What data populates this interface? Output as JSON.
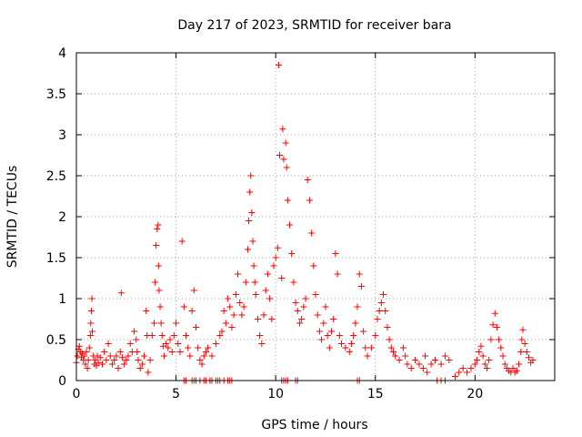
{
  "chart_data": {
    "type": "scatter",
    "title": "Day 217 of 2023, SRMTID for receiver bara",
    "xlabel": "GPS time / hours",
    "ylabel": "SRMTID / TECUs",
    "xlim": [
      0,
      24
    ],
    "ylim": [
      0,
      4
    ],
    "xticks": [
      0,
      5,
      10,
      15,
      20
    ],
    "yticks": [
      0,
      0.5,
      1,
      1.5,
      2,
      2.5,
      3,
      3.5,
      4
    ],
    "xtick_labels": [
      "0",
      "5",
      "10",
      "15",
      "20"
    ],
    "ytick_labels": [
      "0",
      "0.5",
      "1",
      "1.5",
      "2",
      "2.5",
      "3",
      "3.5",
      "4"
    ],
    "grid": true,
    "marker": "+",
    "series": [
      {
        "name": "SRMTID",
        "color": "#ff0000",
        "points": [
          [
            0.0,
            0.22
          ],
          [
            0.05,
            0.3
          ],
          [
            0.1,
            0.38
          ],
          [
            0.15,
            0.42
          ],
          [
            0.2,
            0.35
          ],
          [
            0.25,
            0.28
          ],
          [
            0.3,
            0.33
          ],
          [
            0.35,
            0.25
          ],
          [
            0.4,
            0.3
          ],
          [
            0.45,
            0.2
          ],
          [
            0.5,
            0.35
          ],
          [
            0.55,
            0.15
          ],
          [
            0.6,
            0.25
          ],
          [
            0.65,
            0.4
          ],
          [
            0.7,
            0.55
          ],
          [
            0.72,
            0.7
          ],
          [
            0.75,
            0.85
          ],
          [
            0.78,
            1.0
          ],
          [
            0.8,
            0.6
          ],
          [
            0.85,
            0.3
          ],
          [
            0.9,
            0.2
          ],
          [
            0.95,
            0.25
          ],
          [
            1.0,
            0.18
          ],
          [
            1.05,
            0.3
          ],
          [
            1.1,
            0.22
          ],
          [
            1.2,
            0.28
          ],
          [
            1.3,
            0.2
          ],
          [
            1.4,
            0.35
          ],
          [
            1.5,
            0.25
          ],
          [
            1.6,
            0.45
          ],
          [
            1.7,
            0.3
          ],
          [
            1.8,
            0.2
          ],
          [
            1.9,
            0.25
          ],
          [
            2.0,
            0.3
          ],
          [
            2.1,
            0.15
          ],
          [
            2.2,
            0.35
          ],
          [
            2.25,
            1.07
          ],
          [
            2.3,
            0.28
          ],
          [
            2.4,
            0.2
          ],
          [
            2.5,
            0.25
          ],
          [
            2.6,
            0.3
          ],
          [
            2.7,
            0.45
          ],
          [
            2.8,
            0.35
          ],
          [
            2.9,
            0.6
          ],
          [
            3.0,
            0.5
          ],
          [
            3.05,
            0.35
          ],
          [
            3.1,
            0.25
          ],
          [
            3.2,
            0.15
          ],
          [
            3.3,
            0.2
          ],
          [
            3.4,
            0.3
          ],
          [
            3.5,
            0.85
          ],
          [
            3.55,
            0.55
          ],
          [
            3.6,
            0.1
          ],
          [
            3.7,
            0.25
          ],
          [
            3.8,
            0.55
          ],
          [
            3.9,
            0.7
          ],
          [
            3.95,
            1.2
          ],
          [
            4.0,
            1.65
          ],
          [
            4.05,
            1.85
          ],
          [
            4.1,
            1.9
          ],
          [
            4.12,
            1.4
          ],
          [
            4.15,
            1.1
          ],
          [
            4.2,
            0.9
          ],
          [
            4.25,
            0.7
          ],
          [
            4.3,
            0.55
          ],
          [
            4.35,
            0.42
          ],
          [
            4.4,
            0.3
          ],
          [
            4.5,
            0.45
          ],
          [
            4.6,
            0.4
          ],
          [
            4.7,
            0.5
          ],
          [
            4.8,
            0.35
          ],
          [
            4.9,
            0.55
          ],
          [
            5.0,
            0.7
          ],
          [
            5.1,
            0.45
          ],
          [
            5.2,
            0.35
          ],
          [
            5.3,
            1.7
          ],
          [
            5.4,
            0.9
          ],
          [
            5.5,
            0.55
          ],
          [
            5.6,
            0.4
          ],
          [
            5.7,
            0.3
          ],
          [
            5.8,
            0.85
          ],
          [
            5.9,
            1.1
          ],
          [
            6.0,
            0.65
          ],
          [
            6.1,
            0.4
          ],
          [
            6.2,
            0.25
          ],
          [
            6.3,
            0.2
          ],
          [
            6.4,
            0.3
          ],
          [
            6.5,
            0.35
          ],
          [
            6.6,
            0.4
          ],
          [
            6.8,
            0.3
          ],
          [
            7.0,
            0.45
          ],
          [
            7.2,
            0.55
          ],
          [
            7.3,
            0.6
          ],
          [
            7.4,
            0.85
          ],
          [
            7.5,
            0.7
          ],
          [
            7.6,
            1.0
          ],
          [
            7.7,
            0.9
          ],
          [
            7.8,
            0.65
          ],
          [
            7.9,
            0.8
          ],
          [
            8.0,
            1.05
          ],
          [
            8.1,
            1.3
          ],
          [
            8.2,
            0.95
          ],
          [
            8.3,
            0.8
          ],
          [
            8.4,
            0.9
          ],
          [
            8.5,
            1.2
          ],
          [
            8.6,
            1.6
          ],
          [
            8.65,
            1.95
          ],
          [
            8.7,
            2.3
          ],
          [
            8.75,
            2.5
          ],
          [
            8.8,
            2.05
          ],
          [
            8.85,
            1.7
          ],
          [
            8.9,
            1.4
          ],
          [
            8.95,
            1.2
          ],
          [
            9.0,
            1.05
          ],
          [
            9.1,
            0.75
          ],
          [
            9.2,
            0.55
          ],
          [
            9.3,
            0.45
          ],
          [
            9.4,
            0.8
          ],
          [
            9.5,
            1.1
          ],
          [
            9.6,
            1.3
          ],
          [
            9.7,
            1.0
          ],
          [
            9.8,
            0.75
          ],
          [
            9.9,
            1.4
          ],
          [
            10.0,
            1.5
          ],
          [
            10.1,
            1.62
          ],
          [
            10.15,
            3.85
          ],
          [
            10.2,
            2.75
          ],
          [
            10.3,
            1.25
          ],
          [
            10.35,
            3.07
          ],
          [
            10.4,
            2.7
          ],
          [
            10.5,
            2.9
          ],
          [
            10.55,
            2.6
          ],
          [
            10.6,
            2.2
          ],
          [
            10.7,
            1.9
          ],
          [
            10.8,
            1.55
          ],
          [
            10.9,
            1.2
          ],
          [
            11.0,
            0.95
          ],
          [
            11.1,
            0.85
          ],
          [
            11.2,
            0.7
          ],
          [
            11.3,
            0.75
          ],
          [
            11.4,
            0.9
          ],
          [
            11.5,
            1.0
          ],
          [
            11.6,
            2.45
          ],
          [
            11.7,
            2.2
          ],
          [
            11.8,
            1.8
          ],
          [
            11.9,
            1.4
          ],
          [
            12.0,
            1.05
          ],
          [
            12.1,
            0.8
          ],
          [
            12.2,
            0.6
          ],
          [
            12.3,
            0.5
          ],
          [
            12.4,
            0.7
          ],
          [
            12.5,
            0.9
          ],
          [
            12.6,
            0.55
          ],
          [
            12.7,
            0.4
          ],
          [
            12.8,
            0.6
          ],
          [
            12.9,
            0.75
          ],
          [
            13.0,
            1.55
          ],
          [
            13.1,
            1.3
          ],
          [
            13.2,
            0.55
          ],
          [
            13.3,
            0.45
          ],
          [
            13.5,
            0.4
          ],
          [
            13.7,
            0.35
          ],
          [
            13.8,
            0.45
          ],
          [
            13.9,
            0.55
          ],
          [
            14.0,
            0.7
          ],
          [
            14.1,
            0.9
          ],
          [
            14.2,
            1.3
          ],
          [
            14.3,
            1.15
          ],
          [
            14.4,
            0.6
          ],
          [
            14.5,
            0.4
          ],
          [
            14.6,
            0.3
          ],
          [
            14.8,
            0.4
          ],
          [
            15.0,
            0.55
          ],
          [
            15.1,
            0.75
          ],
          [
            15.2,
            0.85
          ],
          [
            15.3,
            0.95
          ],
          [
            15.4,
            1.05
          ],
          [
            15.5,
            0.85
          ],
          [
            15.6,
            0.65
          ],
          [
            15.7,
            0.5
          ],
          [
            15.8,
            0.4
          ],
          [
            15.9,
            0.35
          ],
          [
            16.0,
            0.3
          ],
          [
            16.2,
            0.25
          ],
          [
            16.4,
            0.4
          ],
          [
            16.5,
            0.3
          ],
          [
            16.6,
            0.2
          ],
          [
            16.8,
            0.15
          ],
          [
            17.0,
            0.25
          ],
          [
            17.2,
            0.2
          ],
          [
            17.4,
            0.15
          ],
          [
            17.5,
            0.3
          ],
          [
            17.6,
            0.1
          ],
          [
            17.8,
            0.2
          ],
          [
            18.0,
            0.25
          ],
          [
            18.3,
            0.2
          ],
          [
            18.5,
            0.3
          ],
          [
            18.7,
            0.25
          ],
          [
            19.0,
            0.05
          ],
          [
            19.2,
            0.1
          ],
          [
            19.4,
            0.15
          ],
          [
            19.6,
            0.1
          ],
          [
            19.8,
            0.15
          ],
          [
            20.0,
            0.2
          ],
          [
            20.1,
            0.25
          ],
          [
            20.2,
            0.35
          ],
          [
            20.3,
            0.42
          ],
          [
            20.4,
            0.3
          ],
          [
            20.5,
            0.2
          ],
          [
            20.6,
            0.15
          ],
          [
            20.7,
            0.25
          ],
          [
            20.8,
            0.5
          ],
          [
            20.9,
            0.68
          ],
          [
            21.0,
            0.82
          ],
          [
            21.1,
            0.65
          ],
          [
            21.2,
            0.5
          ],
          [
            21.3,
            0.4
          ],
          [
            21.4,
            0.3
          ],
          [
            21.5,
            0.2
          ],
          [
            21.6,
            0.15
          ],
          [
            21.7,
            0.12
          ],
          [
            21.8,
            0.1
          ],
          [
            21.9,
            0.15
          ],
          [
            22.0,
            0.1
          ],
          [
            22.1,
            0.12
          ],
          [
            22.2,
            0.2
          ],
          [
            22.3,
            0.35
          ],
          [
            22.35,
            0.5
          ],
          [
            22.4,
            0.62
          ],
          [
            22.5,
            0.45
          ],
          [
            22.6,
            0.35
          ],
          [
            22.7,
            0.28
          ],
          [
            22.8,
            0.22
          ],
          [
            22.9,
            0.25
          ],
          [
            5.4,
            0.0
          ],
          [
            5.5,
            0.0
          ],
          [
            5.8,
            0.0
          ],
          [
            5.9,
            0.0
          ],
          [
            6.0,
            0.0
          ],
          [
            6.2,
            0.0
          ],
          [
            6.4,
            0.0
          ],
          [
            6.5,
            0.0
          ],
          [
            6.7,
            0.0
          ],
          [
            6.8,
            0.0
          ],
          [
            7.0,
            0.0
          ],
          [
            7.1,
            0.0
          ],
          [
            7.2,
            0.0
          ],
          [
            7.4,
            0.0
          ],
          [
            7.6,
            0.0
          ],
          [
            7.7,
            0.0
          ],
          [
            7.8,
            0.0
          ],
          [
            10.3,
            0.0
          ],
          [
            10.4,
            0.0
          ],
          [
            10.5,
            0.0
          ],
          [
            10.6,
            0.0
          ],
          [
            11.0,
            0.0
          ],
          [
            11.1,
            0.0
          ],
          [
            14.1,
            0.0
          ],
          [
            14.2,
            0.0
          ],
          [
            18.1,
            0.0
          ],
          [
            18.3,
            0.0
          ],
          [
            18.5,
            0.0
          ]
        ]
      }
    ]
  }
}
